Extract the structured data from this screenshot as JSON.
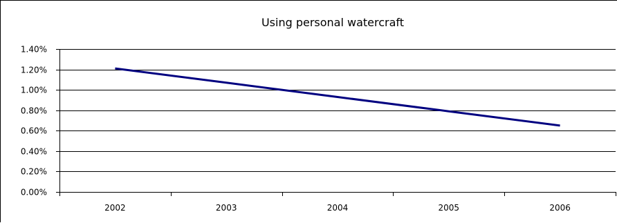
{
  "chart_data": {
    "type": "line",
    "title": "Using personal watercraft",
    "xlabel": "",
    "ylabel": "",
    "categories": [
      "2002",
      "2003",
      "2004",
      "2005",
      "2006"
    ],
    "series": [
      {
        "values": [
          0.0121,
          0.0107,
          0.0093,
          0.0079,
          0.0065
        ],
        "color": "#000080"
      }
    ],
    "ylim": [
      0,
      0.014
    ],
    "yticks": [
      0,
      0.002,
      0.004,
      0.006,
      0.008,
      0.01,
      0.012,
      0.014
    ],
    "ytick_labels": [
      "0.00%",
      "0.20%",
      "0.40%",
      "0.60%",
      "0.80%",
      "1.00%",
      "1.20%",
      "1.40%"
    ],
    "grid": true,
    "legend": "none",
    "colors": {
      "line": "#000080",
      "grid": "#000000",
      "axis": "#000000",
      "text": "#000000"
    }
  }
}
